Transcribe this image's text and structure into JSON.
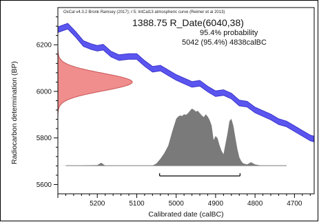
{
  "chart_data": {
    "type": "area",
    "credit": "OxCal v4.3.2 Bronk Ramsey (2017); r:5; IntCal13 atmospheric curve (Reimer et al 2013)",
    "title": "1388.75 R_Date(6040,38)",
    "probability_label": "95.4% probability",
    "range_label": "5042 (95.4%) 4838calBC",
    "xlabel": "Calibrated date (calBC)",
    "ylabel": "Radiocarbon determination (BP)",
    "x_reversed": true,
    "xlim": [
      5300,
      4650
    ],
    "ylim": [
      5560,
      6360
    ],
    "x_ticks": [
      5200,
      5100,
      5000,
      4900,
      4800,
      4700
    ],
    "y_ticks": [
      5600,
      5800,
      6000,
      6200
    ],
    "x_tick_labels": [
      "5200",
      "5100",
      "5000",
      "4900",
      "4800",
      "4700"
    ],
    "y_tick_labels": [
      "5600",
      "5800",
      "6000",
      "6200"
    ],
    "calibration_curve": {
      "x": [
        5300,
        5275,
        5255,
        5235,
        5215,
        5200,
        5185,
        5165,
        5145,
        5120,
        5100,
        5080,
        5060,
        5040,
        5020,
        5000,
        4980,
        4960,
        4940,
        4920,
        4900,
        4880,
        4860,
        4840,
        4820,
        4800,
        4780,
        4760,
        4740,
        4720,
        4700,
        4680,
        4660,
        4650
      ],
      "y": [
        6265,
        6280,
        6245,
        6205,
        6192,
        6185,
        6190,
        6160,
        6145,
        6150,
        6150,
        6120,
        6095,
        6100,
        6080,
        6060,
        6045,
        6030,
        6035,
        6010,
        5990,
        5995,
        5980,
        5950,
        5945,
        5920,
        5905,
        5890,
        5870,
        5860,
        5840,
        5820,
        5800,
        5795
      ],
      "half_width": 12
    },
    "radiocarbon_date": {
      "mean_bp": 6040,
      "sigma_bp": 38
    },
    "posterior": {
      "x": [
        5300,
        5200,
        5190,
        5180,
        5060,
        5050,
        5040,
        5030,
        5020,
        5010,
        5000,
        4995,
        4990,
        4985,
        4980,
        4975,
        4970,
        4965,
        4960,
        4955,
        4950,
        4945,
        4940,
        4935,
        4930,
        4925,
        4920,
        4915,
        4910,
        4905,
        4900,
        4895,
        4890,
        4885,
        4880,
        4875,
        4870,
        4865,
        4860,
        4855,
        4850,
        4845,
        4840,
        4835,
        4830,
        4820,
        4810,
        4800,
        4790,
        4780,
        4650
      ],
      "density": [
        0,
        0.01,
        0.05,
        0,
        0,
        0.04,
        0.12,
        0.22,
        0.35,
        0.6,
        0.82,
        0.86,
        0.88,
        0.87,
        0.9,
        0.89,
        0.92,
        0.96,
        1.0,
        0.98,
        0.95,
        0.96,
        0.92,
        0.88,
        0.85,
        0.9,
        0.86,
        0.8,
        0.7,
        0.45,
        0.52,
        0.48,
        0.36,
        0.26,
        0.2,
        0.38,
        0.56,
        0.78,
        0.82,
        0.7,
        0.5,
        0.3,
        0.15,
        0.08,
        0.04,
        0.02,
        0.06,
        0.02,
        0.01,
        0,
        0
      ]
    },
    "range_bar": {
      "from": 5042,
      "to": 4838
    },
    "colors": {
      "curve_fill": "#5b55f0",
      "curve_edge": "#3a34c8",
      "likelihood_fill": "#f08d8d",
      "likelihood_edge": "#c85656",
      "posterior_fill": "#7a7a7a",
      "posterior_edge": "#4a4a4a",
      "frame": "#000000"
    }
  }
}
